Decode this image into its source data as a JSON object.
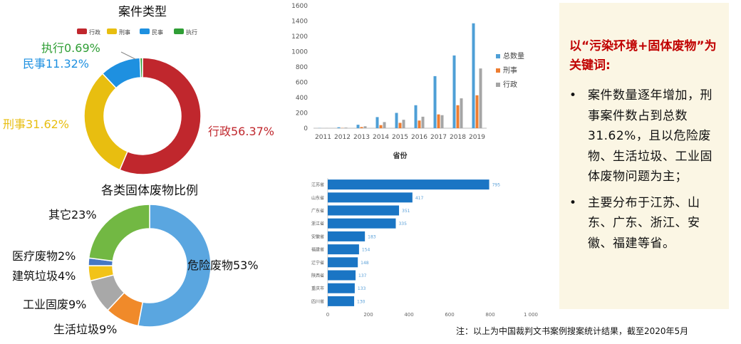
{
  "chart_data": [
    {
      "type": "pie",
      "title": "案件类型",
      "legend": [
        "行政",
        "刑事",
        "民事",
        "执行"
      ],
      "legend_position": "top",
      "slices": [
        {
          "name": "行政",
          "value": 56.37,
          "label": "行政56.37%",
          "color": "#c0272d"
        },
        {
          "name": "刑事",
          "value": 31.62,
          "label": "刑事31.62%",
          "color": "#e8be10"
        },
        {
          "name": "民事",
          "value": 11.32,
          "label": "民事11.32%",
          "color": "#1e90e0"
        },
        {
          "name": "执行",
          "value": 0.69,
          "label": "执行0.69%",
          "color": "#2f9e35"
        }
      ]
    },
    {
      "type": "pie",
      "title": "各类固体废物比例",
      "slices": [
        {
          "name": "危险废物",
          "value": 53,
          "label": "危险废物53%",
          "color": "#5aa6e0"
        },
        {
          "name": "生活垃圾",
          "value": 9,
          "label": "生活垃圾9%",
          "color": "#f08a2a"
        },
        {
          "name": "工业固废",
          "value": 9,
          "label": "工业固废9%",
          "color": "#a8a8a8"
        },
        {
          "name": "建筑垃圾",
          "value": 4,
          "label": "建筑垃圾4%",
          "color": "#f2c318"
        },
        {
          "name": "医疗废物",
          "value": 2,
          "label": "医疗废物2%",
          "color": "#4677c4"
        },
        {
          "name": "其它",
          "value": 23,
          "label": "其它23%",
          "color": "#72b843"
        }
      ]
    },
    {
      "type": "bar",
      "title": "",
      "xlabel": "省份",
      "ylabel": "",
      "ylim": [
        0,
        1600
      ],
      "yticks": [
        "0",
        "200",
        "400",
        "600",
        "800",
        "1000",
        "1200",
        "1400",
        "1600"
      ],
      "grid": false,
      "legend_position": "right",
      "categories": [
        "2011",
        "2012",
        "2013",
        "2014",
        "2015",
        "2016",
        "2017",
        "2018",
        "2019"
      ],
      "series": [
        {
          "name": "总数量",
          "color": "#4e9fd6",
          "values": [
            2,
            12,
            45,
            145,
            200,
            300,
            680,
            950,
            1370
          ]
        },
        {
          "name": "刑事",
          "color": "#ed7d31",
          "values": [
            0,
            3,
            15,
            40,
            70,
            100,
            180,
            300,
            430
          ]
        },
        {
          "name": "行政",
          "color": "#a5a5a5",
          "values": [
            1,
            8,
            25,
            80,
            110,
            150,
            170,
            390,
            780
          ]
        }
      ]
    },
    {
      "type": "bar",
      "orientation": "horizontal",
      "xlim": [
        0,
        1000
      ],
      "xticks": [
        "0",
        "200",
        "400",
        "600",
        "800",
        "1 000"
      ],
      "categories": [
        "江苏省",
        "山东省",
        "广东省",
        "浙江省",
        "安徽省",
        "福建省",
        "辽宁省",
        "陕西省",
        "重庆市",
        "四川省"
      ],
      "values": [
        795,
        417,
        351,
        335,
        183,
        154,
        148,
        137,
        133,
        130
      ],
      "value_labels": [
        "795",
        "417",
        "351",
        "335",
        "183",
        "154",
        "148",
        "137",
        "133",
        "130"
      ],
      "color": "#1a75c4"
    }
  ],
  "callout": {
    "title": "以“污染环境+固体废物”为关键词:",
    "bullet_symbol": "•",
    "points": [
      "案件数量逐年增加，刑事案件数占到总数31.62%，且以危险废物、生活垃圾、工业固体废物问题为主；",
      "主要分布于江苏、山东、广东、浙江、安徽、福建等省。"
    ]
  },
  "footnote": "注：以上为中国裁判文书案例搜案统计结果，截至2020年5月"
}
